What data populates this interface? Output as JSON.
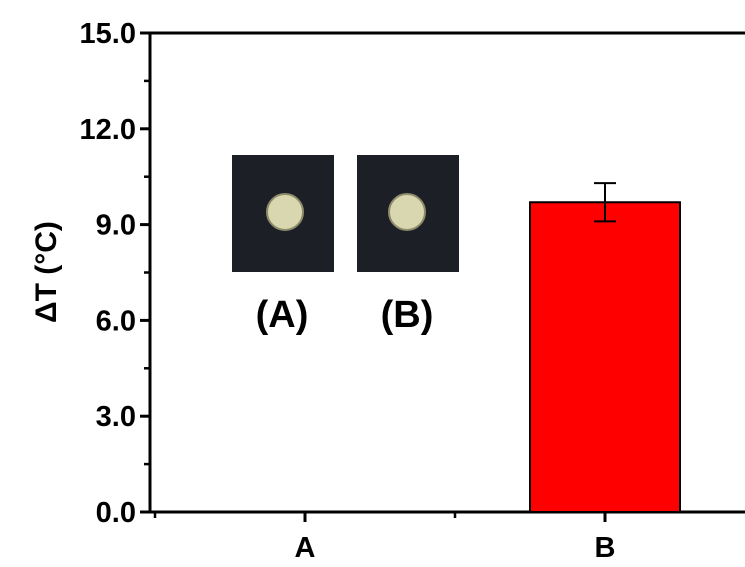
{
  "chart_data": {
    "type": "bar",
    "categories": [
      "A",
      "B"
    ],
    "values": [
      0.0,
      9.7
    ],
    "errors": [
      0.0,
      0.6
    ],
    "ylabel": "ΔT (°C)",
    "ylim": [
      0,
      15
    ],
    "yticks": [
      "0.0",
      "3.0",
      "6.0",
      "9.0",
      "12.0",
      "15.0"
    ],
    "bar_color": "#ff0000",
    "grid": false,
    "inset": {
      "labels": [
        "(A)",
        "(B)"
      ],
      "background_color": "#1c1f26",
      "spot_color": "#d9d7b0"
    }
  }
}
